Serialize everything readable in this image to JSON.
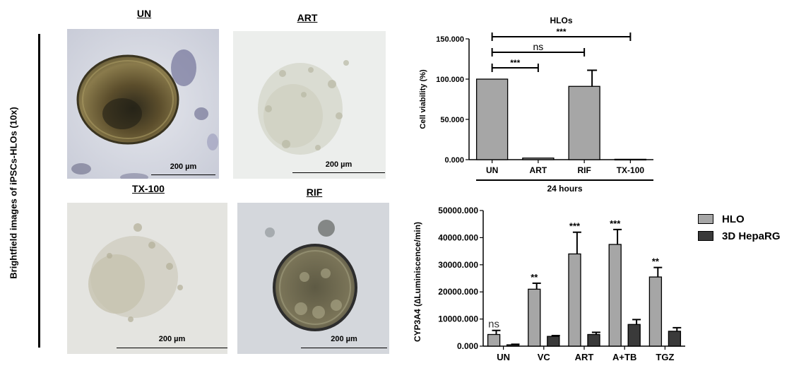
{
  "figure": {
    "side_label": "Brightfield images of iPSCs-HLOs (10x)",
    "panels": [
      {
        "title": "UN",
        "scale": "200 µm"
      },
      {
        "title": "ART",
        "scale": "200 µm"
      },
      {
        "title": "TX-100",
        "scale": "200 µm"
      },
      {
        "title": "RIF",
        "scale": "200 µm"
      }
    ]
  },
  "chart_data": [
    {
      "type": "bar",
      "title": "HLOs",
      "ylabel": "Cell viability (%)",
      "xlabel": "24 hours",
      "categories": [
        "UN",
        "ART",
        "RIF",
        "TX-100"
      ],
      "values": [
        100,
        2,
        91,
        0.5
      ],
      "errors": [
        0,
        0,
        20,
        0
      ],
      "ylim": [
        0,
        150
      ],
      "yticks": [
        0,
        50,
        100,
        150
      ],
      "ytick_labels": [
        "0.000",
        "50.000",
        "100.000",
        "150.000"
      ],
      "bar_color": "#a6a6a6",
      "comparisons": [
        {
          "from": "UN",
          "to": "TX-100",
          "label": "***"
        },
        {
          "from": "UN",
          "to": "RIF",
          "label": "ns"
        },
        {
          "from": "UN",
          "to": "ART",
          "label": "***"
        }
      ]
    },
    {
      "type": "bar",
      "ylabel": "CYP3A4 (∆Luminiscence/min)",
      "categories": [
        "UN",
        "VC",
        "ART",
        "A+TB",
        "TGZ"
      ],
      "ylim": [
        0,
        50000
      ],
      "yticks": [
        0,
        10000,
        20000,
        30000,
        40000,
        50000
      ],
      "ytick_labels": [
        "0.000",
        "10000.000",
        "20000.000",
        "30000.000",
        "40000.000",
        "50000.000"
      ],
      "series": [
        {
          "name": "HLO",
          "color": "#a6a6a6",
          "values": [
            4300,
            21000,
            34000,
            37500,
            25500
          ],
          "errors": [
            1500,
            2200,
            8000,
            5500,
            3500
          ],
          "significance": [
            "ns",
            "**",
            "***",
            "***",
            "**"
          ]
        },
        {
          "name": "3D HepaRG",
          "color": "#3a3a3a",
          "values": [
            500,
            3600,
            4300,
            8000,
            5500
          ],
          "errors": [
            200,
            300,
            800,
            1800,
            1300
          ],
          "significance": [
            "",
            "",
            "",
            "",
            ""
          ]
        }
      ]
    }
  ]
}
